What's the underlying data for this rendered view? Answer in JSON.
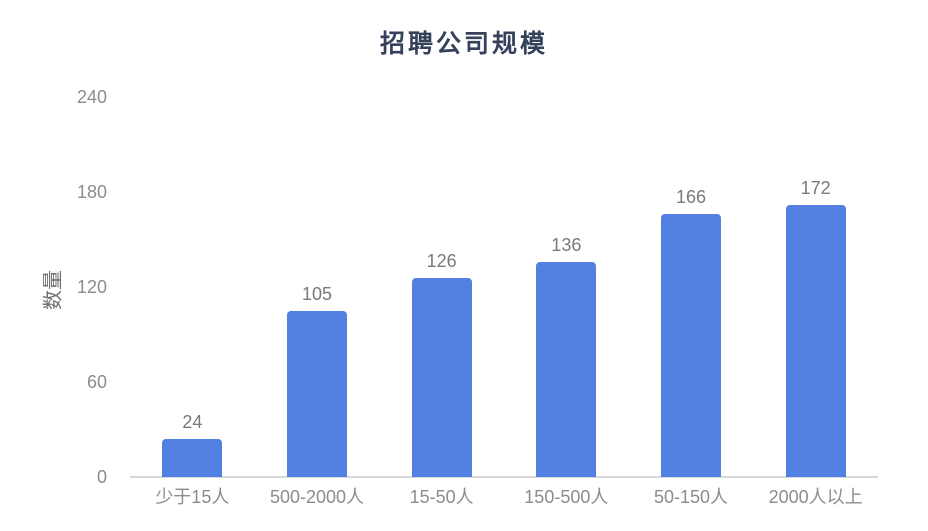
{
  "title": "招聘公司规模",
  "chart_data": {
    "type": "bar",
    "title": "招聘公司规模",
    "categories": [
      "少于15人",
      "500-2000人",
      "15-50人",
      "150-500人",
      "50-150人",
      "2000人以上"
    ],
    "values": [
      24,
      105,
      126,
      136,
      166,
      172
    ],
    "xlabel": "",
    "ylabel": "数量",
    "ylim": [
      0,
      240
    ],
    "yticks": [
      0,
      60,
      120,
      180,
      240
    ],
    "grid": false,
    "legend": "none",
    "data_labels_shown": true
  },
  "colors": {
    "bar": "#5281E2",
    "title": "#36425C",
    "axis_line": "#D8D8D8",
    "tick_label": "#8C8C8C",
    "category_label": "#8C8C8C",
    "data_label": "#7A7A7A",
    "y_axis_title": "#6E6E6E",
    "background": "#FFFFFF"
  }
}
